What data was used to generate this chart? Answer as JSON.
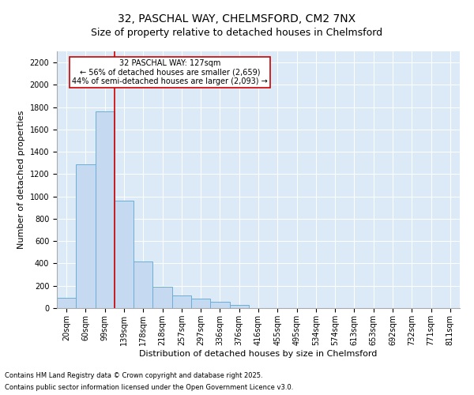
{
  "title1": "32, PASCHAL WAY, CHELMSFORD, CM2 7NX",
  "title2": "Size of property relative to detached houses in Chelmsford",
  "xlabel": "Distribution of detached houses by size in Chelmsford",
  "ylabel": "Number of detached properties",
  "categories": [
    "20sqm",
    "60sqm",
    "99sqm",
    "139sqm",
    "178sqm",
    "218sqm",
    "257sqm",
    "297sqm",
    "336sqm",
    "376sqm",
    "416sqm",
    "455sqm",
    "495sqm",
    "534sqm",
    "574sqm",
    "613sqm",
    "653sqm",
    "692sqm",
    "732sqm",
    "771sqm",
    "811sqm"
  ],
  "values": [
    90,
    1290,
    1760,
    960,
    420,
    190,
    110,
    85,
    55,
    30,
    0,
    0,
    0,
    0,
    0,
    0,
    0,
    0,
    0,
    0,
    0
  ],
  "bar_color": "#c5d9f0",
  "bar_edge_color": "#6baed6",
  "vline_position": 2.5,
  "vline_color": "#cc0000",
  "annotation_title": "32 PASCHAL WAY: 127sqm",
  "annotation_line1": "← 56% of detached houses are smaller (2,659)",
  "annotation_line2": "44% of semi-detached houses are larger (2,093) →",
  "annotation_box_color": "#cc0000",
  "ylim": [
    0,
    2300
  ],
  "yticks": [
    0,
    200,
    400,
    600,
    800,
    1000,
    1200,
    1400,
    1600,
    1800,
    2000,
    2200
  ],
  "footnote1": "Contains HM Land Registry data © Crown copyright and database right 2025.",
  "footnote2": "Contains public sector information licensed under the Open Government Licence v3.0.",
  "plot_bg_color": "#dce9f7",
  "fig_bg_color": "#ffffff",
  "title1_fontsize": 10,
  "title2_fontsize": 9,
  "annotation_fontsize": 7,
  "tick_fontsize": 7,
  "xlabel_fontsize": 8,
  "ylabel_fontsize": 8,
  "footnote_fontsize": 6
}
